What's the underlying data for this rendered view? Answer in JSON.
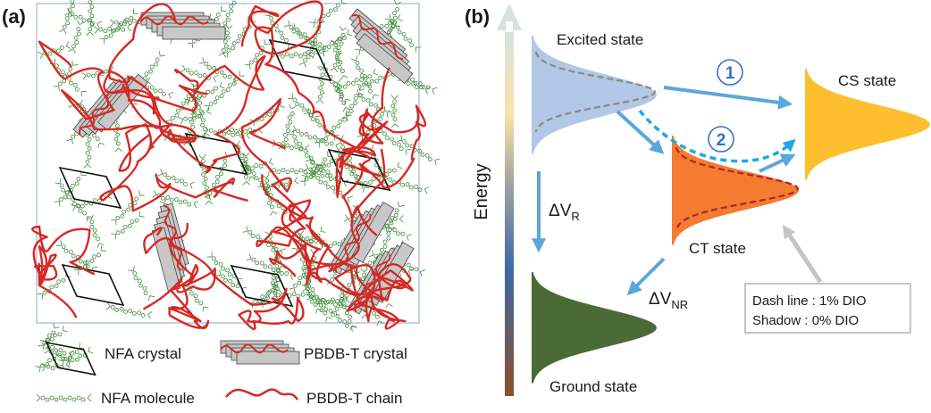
{
  "panel_a": {
    "label": "(a)",
    "legend": [
      {
        "icon": "nfa-crystal-icon",
        "label": "NFA crystal"
      },
      {
        "icon": "pbdb-t-crystal-icon",
        "label": "PBDB-T crystal"
      },
      {
        "icon": "nfa-molecule-icon",
        "label": "NFA molecule"
      },
      {
        "icon": "pbdb-t-chain-icon",
        "label": "PBDB-T chain"
      }
    ],
    "colors": {
      "chain": "#d42a25",
      "molecule": "#3f8a3a",
      "crystal_fill": "#c8c8c8",
      "frame": "#9fb4d8"
    }
  },
  "panel_b": {
    "label": "(b)",
    "axis_label": "Energy",
    "states": {
      "excited": "Excited state",
      "cs": "CS state",
      "ct": "CT state",
      "ground": "Ground state"
    },
    "pathways": {
      "one": "1",
      "two": "2"
    },
    "delta_vr": {
      "main": "ΔV",
      "sub": "R"
    },
    "delta_vnr": {
      "main": "ΔV",
      "sub": "NR"
    },
    "note": {
      "line1": "Dash line : 1% DIO",
      "line2": "Shadow : 0% DIO"
    },
    "colors": {
      "excited": "#b3c7e6",
      "ct": "#f47b30",
      "cs": "#fdbf2e",
      "ground": "#4b6b36",
      "arrow": "#5ba6dc",
      "dashed_arrow": "#1ea8e0"
    }
  }
}
